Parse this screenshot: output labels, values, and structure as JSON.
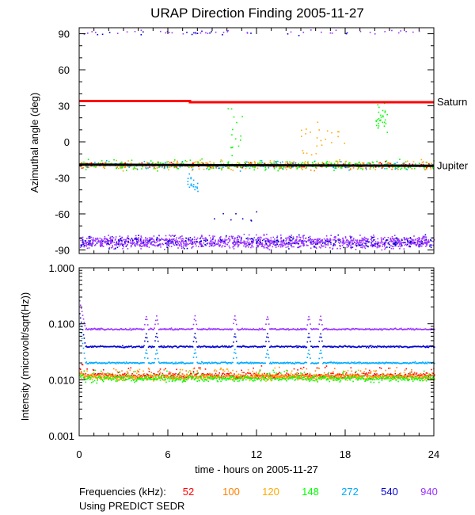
{
  "chart_data": [
    {
      "type": "scatter",
      "title": "URAP Direction Finding  2005-11-27",
      "ylabel": "Azimuthal angle (deg)",
      "xlim": [
        0,
        24
      ],
      "ylim": [
        -93,
        95
      ],
      "yticks": [
        -90,
        -60,
        -30,
        0,
        30,
        60,
        90
      ],
      "grid": false,
      "reference_lines": [
        {
          "name": "Saturn",
          "color": "#ff0000",
          "x": [
            0,
            7.5,
            7.5,
            24
          ],
          "y": [
            34,
            34,
            33,
            33
          ]
        },
        {
          "name": "Jupiter",
          "color": "#000000",
          "x": [
            0,
            24
          ],
          "y": [
            -19,
            -20
          ]
        }
      ],
      "clusters": [
        {
          "freq": "940",
          "color": "#9933ff",
          "x_range": [
            0,
            24
          ],
          "y_center": -83,
          "y_spread": 5,
          "count": 1400
        },
        {
          "freq": "540",
          "color": "#0000cc",
          "x_range": [
            0,
            24
          ],
          "y_center": -83,
          "y_spread": 5,
          "count": 220
        },
        {
          "freq": "540",
          "color": "#0000cc",
          "x_range": [
            0.3,
            24
          ],
          "y_center": 91,
          "y_spread": 1.5,
          "count": 20
        },
        {
          "freq": "940",
          "color": "#9933ff",
          "x_range": [
            0.3,
            24
          ],
          "y_center": 92,
          "y_spread": 1.5,
          "count": 40
        },
        {
          "freq": "148",
          "color": "#00ff00",
          "x_range": [
            0,
            24
          ],
          "y_center": -19,
          "y_spread": 4,
          "count": 300
        },
        {
          "freq": "120",
          "color": "#ffaa00",
          "x_range": [
            0,
            24
          ],
          "y_center": -19,
          "y_spread": 4,
          "count": 220
        },
        {
          "freq": "100",
          "color": "#ff8000",
          "x_range": [
            0,
            24
          ],
          "y_center": -19,
          "y_spread": 3.5,
          "count": 120
        },
        {
          "freq": "52",
          "color": "#ff0000",
          "x_range": [
            0,
            24
          ],
          "y_center": -19,
          "y_spread": 2.5,
          "count": 110
        },
        {
          "freq": "272",
          "color": "#00aaff",
          "x_range": [
            0,
            24
          ],
          "y_center": -19,
          "y_spread": 4,
          "count": 90
        },
        {
          "freq": "148",
          "color": "#00ff00",
          "x_range": [
            20,
            21
          ],
          "y_center": 20,
          "y_spread": 12,
          "count": 30
        },
        {
          "freq": "120",
          "color": "#ffaa00",
          "x_range": [
            15,
            18
          ],
          "y_center": 0,
          "y_spread": 14,
          "count": 25
        },
        {
          "freq": "272",
          "color": "#00aaff",
          "x_range": [
            7.3,
            8
          ],
          "y_center": -35,
          "y_spread": 10,
          "count": 20
        },
        {
          "freq": "148",
          "color": "#00ff00",
          "x_range": [
            10,
            11
          ],
          "y_center": 10,
          "y_spread": 25,
          "count": 15
        },
        {
          "freq": "540",
          "color": "#0000cc",
          "x_range": [
            9,
            12
          ],
          "y_center": -62,
          "y_spread": 6,
          "count": 8
        }
      ]
    },
    {
      "type": "line",
      "ylabel": "Intensity (microvolt/sqrt(Hz))",
      "xlabel": "time - hours on 2005-11-27",
      "xlim": [
        0,
        24
      ],
      "xticks": [
        0,
        6,
        12,
        18,
        24
      ],
      "ylim": [
        0.001,
        1.0
      ],
      "yscale": "log",
      "ytick_labels": [
        "0.001",
        "0.010",
        "0.100",
        "1.000"
      ],
      "yticks": [
        0.001,
        0.01,
        0.1,
        1.0
      ],
      "grid": false,
      "spikes_hours": [
        4.5,
        5.2,
        7.8,
        10.5,
        12.7,
        15.5,
        16.3
      ],
      "series": [
        {
          "name": "940",
          "color": "#9933ff",
          "baseline": 0.08,
          "start": 0.25
        },
        {
          "name": "540",
          "color": "#0000cc",
          "baseline": 0.039,
          "start": 0.15
        },
        {
          "name": "272",
          "color": "#00aaff",
          "baseline": 0.02,
          "start": 0.1
        },
        {
          "name": "52",
          "color": "#ff0000",
          "baseline": 0.012,
          "start": 0.015
        },
        {
          "name": "100",
          "color": "#ff8000",
          "baseline": 0.0115,
          "start": 0.014
        },
        {
          "name": "120",
          "color": "#ffaa00",
          "baseline": 0.011,
          "start": 0.013
        },
        {
          "name": "148",
          "color": "#00ff00",
          "baseline": 0.0105,
          "start": 0.012
        }
      ]
    }
  ],
  "legend": {
    "label": "Frequencies (kHz):",
    "items": [
      {
        "text": "52",
        "color": "#ff0000"
      },
      {
        "text": "100",
        "color": "#ff8000"
      },
      {
        "text": "120",
        "color": "#ffaa00"
      },
      {
        "text": "148",
        "color": "#00ff00"
      },
      {
        "text": "272",
        "color": "#00aaff"
      },
      {
        "text": "540",
        "color": "#0000cc"
      },
      {
        "text": "940",
        "color": "#9933ff"
      }
    ],
    "note": "Using PREDICT SEDR"
  }
}
